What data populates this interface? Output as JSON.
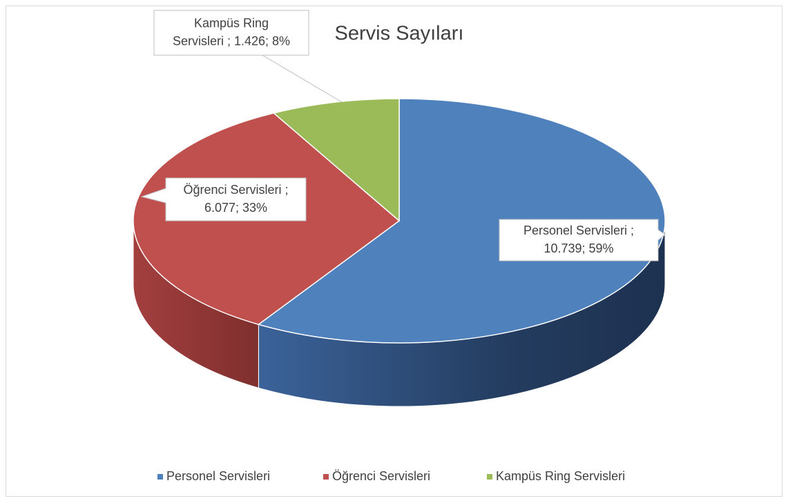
{
  "chart_data": {
    "type": "pie3d",
    "title": "Servis Sayıları",
    "categories": [
      "Personel Servisleri",
      "Öğrenci Servisleri",
      "Kampüs Ring Servisleri"
    ],
    "values": [
      10739,
      6077,
      1426
    ],
    "value_labels": [
      [
        "Personel Servisleri ;",
        "10.739; 59%"
      ],
      [
        "Öğrenci Servisleri ;",
        "6.077; 33%"
      ],
      [
        "Kampüs Ring",
        "Servisleri ; 1.426; 8%"
      ]
    ],
    "colors": [
      "#4f81bd",
      "#c0504d",
      "#9bbb59"
    ],
    "legend": "bottom"
  }
}
